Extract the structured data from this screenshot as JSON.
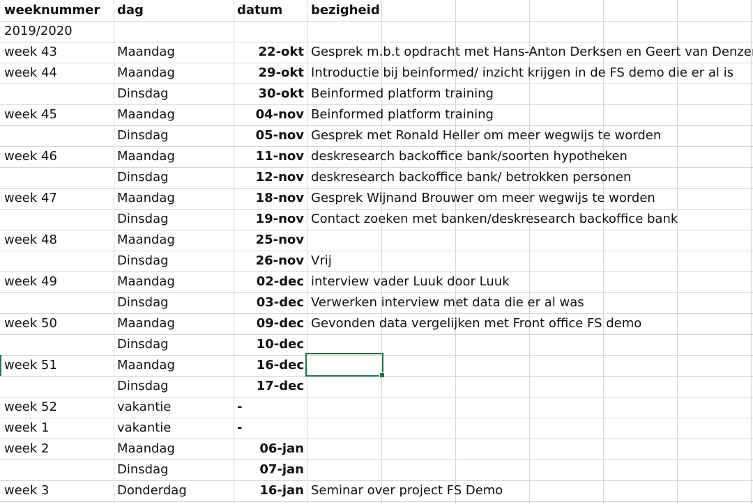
{
  "columns": {
    "weeknummer": "weeknummer",
    "dag": "dag",
    "datum": "datum",
    "bezigheid": "bezigheid"
  },
  "rows": [
    {
      "week": "2019/2020",
      "dag": "",
      "datum": "",
      "bezigheid": ""
    },
    {
      "week": "week 43",
      "dag": "Maandag",
      "datum": "22-okt",
      "bezigheid": "Gesprek m.b.t opdracht met Hans-Anton Derksen en Geert van Denzen"
    },
    {
      "week": "week 44",
      "dag": "Maandag",
      "datum": "29-okt",
      "bezigheid": "Introductie bij beinformed/ inzicht krijgen in de FS demo die er al is"
    },
    {
      "week": "",
      "dag": "Dinsdag",
      "datum": "30-okt",
      "bezigheid": "Beinformed platform training"
    },
    {
      "week": "week 45",
      "dag": "Maandag",
      "datum": "04-nov",
      "bezigheid": "Beinformed platform training"
    },
    {
      "week": "",
      "dag": "Dinsdag",
      "datum": "05-nov",
      "bezigheid": "Gesprek met Ronald Heller om meer wegwijs te worden"
    },
    {
      "week": "week 46",
      "dag": "Maandag",
      "datum": "11-nov",
      "bezigheid": "deskresearch backoffice bank/soorten hypotheken"
    },
    {
      "week": "",
      "dag": "Dinsdag",
      "datum": "12-nov",
      "bezigheid": "deskresearch backoffice bank/ betrokken personen"
    },
    {
      "week": "week 47",
      "dag": "Maandag",
      "datum": "18-nov",
      "bezigheid": "Gesprek Wijnand Brouwer om meer wegwijs te worden"
    },
    {
      "week": "",
      "dag": "Dinsdag",
      "datum": "19-nov",
      "bezigheid": "Contact zoeken met banken/deskresearch backoffice bank"
    },
    {
      "week": "week 48",
      "dag": "Maandag",
      "datum": "25-nov",
      "bezigheid": ""
    },
    {
      "week": "",
      "dag": "Dinsdag",
      "datum": "26-nov",
      "bezigheid": "Vrij"
    },
    {
      "week": "week 49",
      "dag": "Maandag",
      "datum": "02-dec",
      "bezigheid": "interview vader Luuk door Luuk"
    },
    {
      "week": "",
      "dag": "Dinsdag",
      "datum": "03-dec",
      "bezigheid": "Verwerken interview met data die er al was"
    },
    {
      "week": "week 50",
      "dag": "Maandag",
      "datum": "09-dec",
      "bezigheid": "Gevonden data vergelijken met Front office FS demo"
    },
    {
      "week": "",
      "dag": "Dinsdag",
      "datum": "10-dec",
      "bezigheid": ""
    },
    {
      "week": "week 51",
      "dag": "Maandag",
      "datum": "16-dec",
      "bezigheid": ""
    },
    {
      "week": "",
      "dag": "Dinsdag",
      "datum": "17-dec",
      "bezigheid": ""
    },
    {
      "week": "week 52",
      "dag": "vakantie",
      "datum": "-",
      "bezigheid": ""
    },
    {
      "week": "week 1",
      "dag": "vakantie",
      "datum": "-",
      "bezigheid": ""
    },
    {
      "week": "week 2",
      "dag": "Maandag",
      "datum": "06-jan",
      "bezigheid": ""
    },
    {
      "week": "",
      "dag": "Dinsdag",
      "datum": "07-jan",
      "bezigheid": ""
    },
    {
      "week": "week 3",
      "dag": "Donderdag",
      "datum": "16-jan",
      "bezigheid": "Seminar over project FS Demo"
    }
  ],
  "selection": {
    "color": "#217346"
  },
  "gridline_color": "#d6d6d6"
}
